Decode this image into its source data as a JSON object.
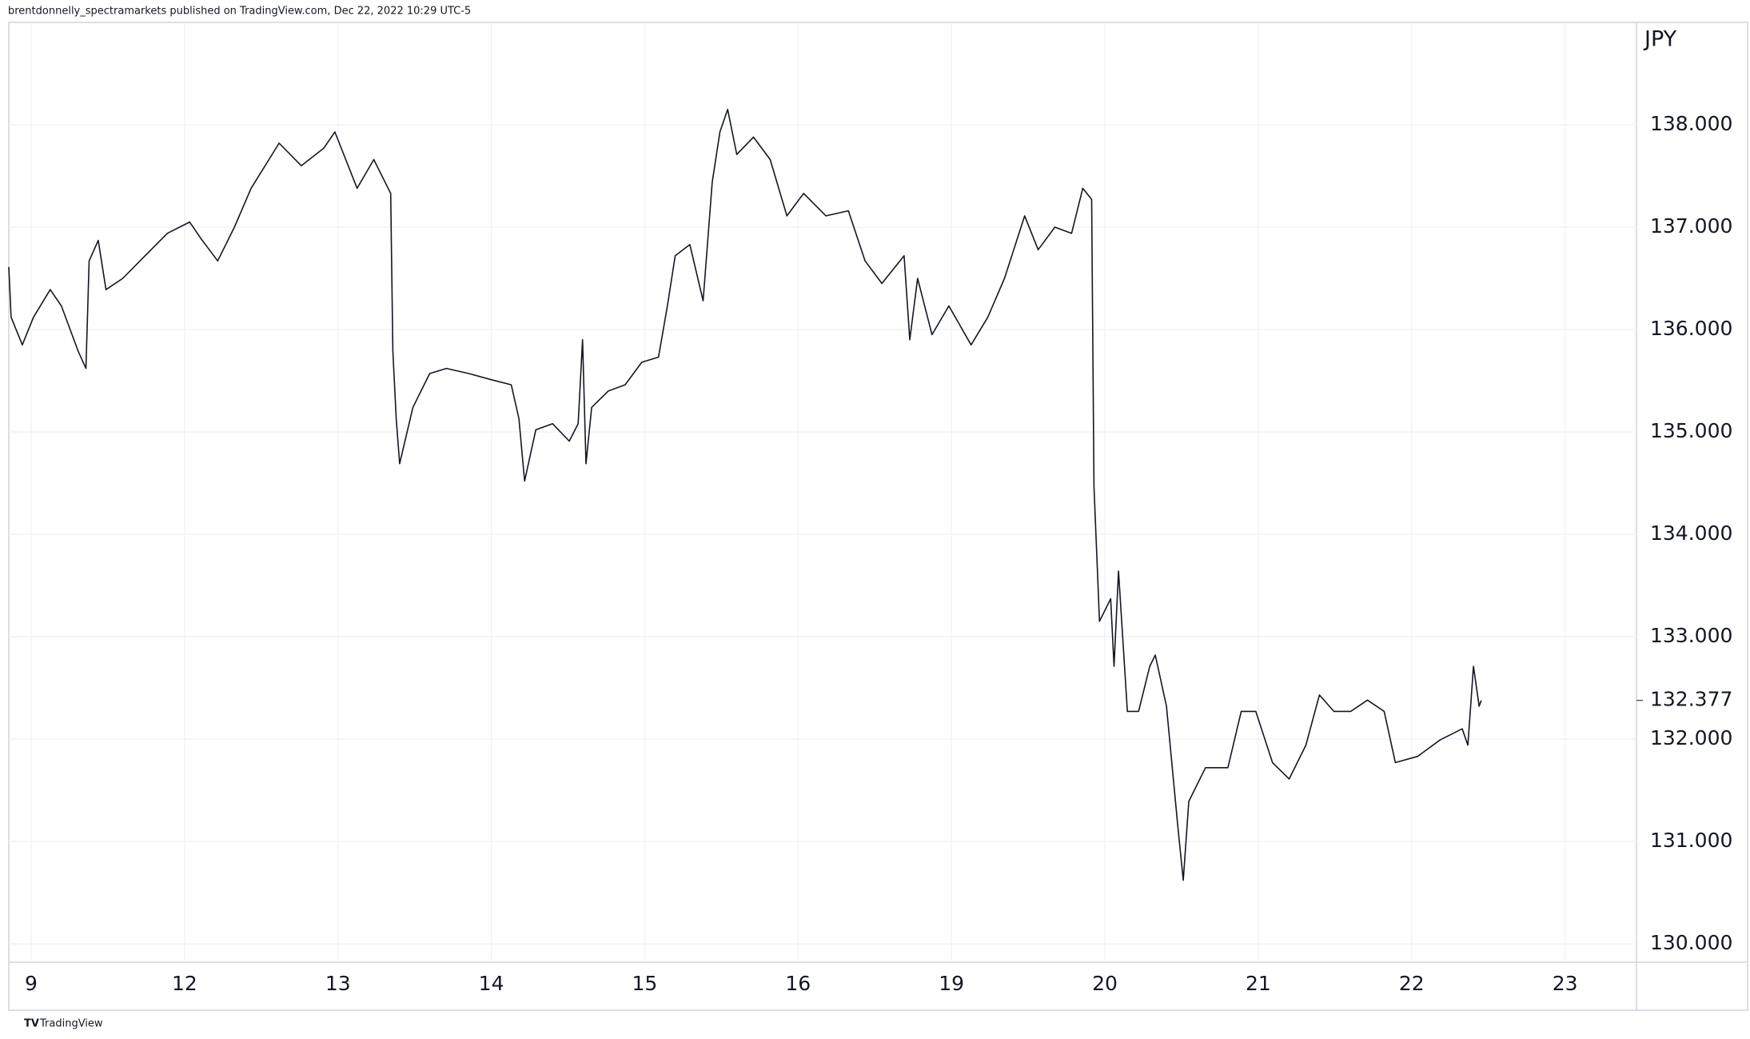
{
  "header": "brentdonnelly_spectramarkets published on TradingView.com, Dec 22, 2022 10:29 UTC-5",
  "footer": "TradingView",
  "chart_data": {
    "type": "line",
    "y_unit": "JPY",
    "color": "#131722",
    "grid": true,
    "xlim": [
      -0.146,
      10.466
    ],
    "ylim": [
      129.82,
      139.0
    ],
    "xticks": [
      {
        "value": 0,
        "label": "9"
      },
      {
        "value": 1,
        "label": "12"
      },
      {
        "value": 2,
        "label": "13"
      },
      {
        "value": 3,
        "label": "14"
      },
      {
        "value": 4,
        "label": "15"
      },
      {
        "value": 5,
        "label": "16"
      },
      {
        "value": 6,
        "label": "19"
      },
      {
        "value": 7,
        "label": "20"
      },
      {
        "value": 8,
        "label": "21"
      },
      {
        "value": 9,
        "label": "22"
      },
      {
        "value": 10,
        "label": "23"
      }
    ],
    "yticks": [
      {
        "value": 130,
        "label": "130.000"
      },
      {
        "value": 131,
        "label": "131.000"
      },
      {
        "value": 132,
        "label": "132.000"
      },
      {
        "value": 133,
        "label": "133.000"
      },
      {
        "value": 134,
        "label": "134.000"
      },
      {
        "value": 135,
        "label": "135.000"
      },
      {
        "value": 136,
        "label": "136.000"
      },
      {
        "value": 137,
        "label": "137.000"
      },
      {
        "value": 138,
        "label": "138.000"
      }
    ],
    "last_price": {
      "value": 132.377,
      "label": "132.377"
    },
    "x": [
      -0.146,
      -0.131,
      -0.058,
      0.015,
      0.124,
      0.197,
      0.306,
      0.357,
      0.378,
      0.437,
      0.488,
      0.597,
      0.742,
      0.888,
      1.033,
      1.106,
      1.216,
      1.325,
      1.434,
      1.616,
      1.761,
      1.907,
      1.98,
      2.125,
      2.234,
      2.344,
      2.358,
      2.38,
      2.402,
      2.489,
      2.598,
      2.707,
      2.853,
      2.999,
      3.13,
      3.18,
      3.217,
      3.29,
      3.399,
      3.508,
      3.566,
      3.595,
      3.617,
      3.654,
      3.763,
      3.872,
      3.981,
      4.09,
      4.148,
      4.199,
      4.294,
      4.381,
      4.44,
      4.49,
      4.541,
      4.6,
      4.709,
      4.818,
      4.927,
      5.036,
      5.182,
      5.328,
      5.437,
      5.546,
      5.691,
      5.728,
      5.779,
      5.873,
      5.983,
      6.128,
      6.237,
      6.346,
      6.477,
      6.565,
      6.674,
      6.783,
      6.856,
      6.914,
      6.929,
      6.965,
      7.038,
      7.06,
      7.089,
      7.147,
      7.22,
      7.293,
      7.329,
      7.402,
      7.474,
      7.511,
      7.547,
      7.656,
      7.802,
      7.889,
      7.984,
      8.093,
      8.202,
      8.311,
      8.399,
      8.493,
      8.603,
      8.712,
      8.821,
      8.894,
      9.039,
      9.185,
      9.33,
      9.367,
      9.403,
      9.44,
      9.454
    ],
    "values": [
      136.61,
      136.12,
      135.85,
      136.12,
      136.39,
      136.23,
      135.79,
      135.62,
      136.67,
      136.87,
      136.39,
      136.5,
      136.72,
      136.94,
      137.05,
      136.89,
      136.67,
      137.0,
      137.38,
      137.82,
      137.6,
      137.77,
      137.93,
      137.38,
      137.66,
      137.33,
      135.79,
      135.13,
      134.69,
      135.24,
      135.57,
      135.62,
      135.57,
      135.51,
      135.46,
      135.13,
      134.52,
      135.02,
      135.08,
      134.91,
      135.08,
      135.9,
      134.69,
      135.24,
      135.4,
      135.46,
      135.68,
      135.73,
      136.23,
      136.72,
      136.83,
      136.28,
      137.44,
      137.93,
      138.15,
      137.71,
      137.88,
      137.66,
      137.11,
      137.33,
      137.11,
      137.16,
      136.67,
      136.45,
      136.72,
      135.9,
      136.5,
      135.95,
      136.23,
      135.85,
      136.12,
      136.5,
      137.11,
      136.78,
      137.0,
      136.94,
      137.38,
      137.27,
      134.47,
      133.15,
      133.37,
      132.71,
      133.64,
      132.27,
      132.27,
      132.71,
      132.82,
      132.32,
      131.17,
      130.62,
      131.39,
      131.72,
      131.72,
      132.27,
      132.27,
      131.77,
      131.61,
      131.94,
      132.43,
      132.27,
      132.27,
      132.38,
      132.27,
      131.77,
      131.83,
      131.99,
      132.1,
      131.94,
      132.71,
      132.32,
      132.377
    ]
  }
}
